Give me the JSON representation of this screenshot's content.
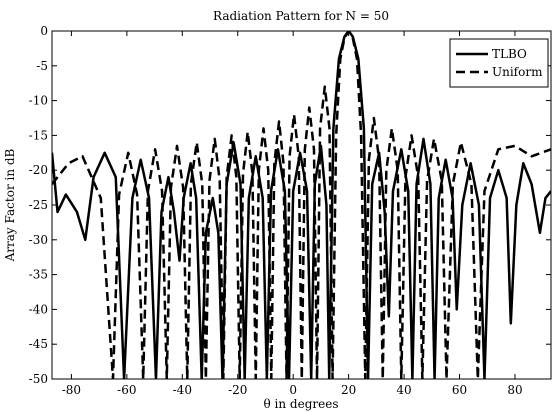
{
  "chart_data": {
    "type": "line",
    "title": "Radiation Pattern for N = 50",
    "x_label": "θ in degrees",
    "y_label": "Array Factor in dB",
    "xlim": [
      -87,
      93
    ],
    "xticks": [
      -80,
      -60,
      -40,
      -20,
      0,
      20,
      40,
      60,
      80
    ],
    "ylim": [
      -50,
      0
    ],
    "yticks": [
      -50,
      -45,
      -40,
      -35,
      -30,
      -25,
      -20,
      -15,
      -10,
      -5,
      0
    ],
    "legend": "upper right",
    "series": [
      {
        "name": "TLBO",
        "color": "#000000",
        "linestyle": "solid",
        "x": [
          -87,
          -85,
          -82,
          -78,
          -75,
          -72,
          -68,
          -64,
          -61,
          -58,
          -55,
          -52,
          -49.5,
          -47.5,
          -45,
          -43,
          -41,
          -39.5,
          -37,
          -35,
          -33,
          -31.5,
          -29,
          -27,
          -25.5,
          -24,
          -21.5,
          -19,
          -17.5,
          -16,
          -13.5,
          -11,
          -9.5,
          -8,
          -5.5,
          -3,
          -1.5,
          0,
          2.5,
          5,
          6.5,
          7.8,
          10,
          12,
          13,
          14.5,
          16.5,
          18.5,
          20,
          21.5,
          23.5,
          25.5,
          27,
          28.5,
          31,
          33,
          34.5,
          36,
          39,
          41.5,
          43,
          44.5,
          47,
          49.5,
          51,
          52.5,
          55,
          57.5,
          59,
          61,
          64,
          67,
          69,
          71,
          74,
          77,
          78.5,
          80.5,
          83,
          86,
          89,
          91,
          93
        ],
        "values": [
          -17.5,
          -26,
          -23.5,
          -26,
          -30,
          -21,
          -17.5,
          -21,
          -50,
          -24,
          -18.5,
          -24,
          -50,
          -26,
          -21,
          -26,
          -33,
          -24,
          -19,
          -24,
          -50,
          -29,
          -24,
          -29,
          -50,
          -22,
          -16,
          -22,
          -50,
          -24,
          -18,
          -24,
          -50,
          -23,
          -17,
          -23,
          -50,
          -23,
          -17.5,
          -23,
          -50,
          -22,
          -16.5,
          -25,
          -50,
          -14,
          -4,
          -0.8,
          0,
          -0.8,
          -4,
          -14,
          -50,
          -22,
          -17.5,
          -26,
          -41,
          -23,
          -17,
          -23,
          -50,
          -22,
          -15.5,
          -22,
          -50,
          -24,
          -18.5,
          -24,
          -40,
          -25,
          -19,
          -25,
          -50,
          -24,
          -20,
          -24,
          -42,
          -25,
          -19,
          -22,
          -29,
          -24,
          -23
        ]
      },
      {
        "name": "Uniform",
        "color": "#000000",
        "linestyle": "dashed",
        "x": [
          -87,
          -81,
          -76,
          -69.4,
          -65,
          -62.8,
          -59.5,
          -56.3,
          -54.1,
          -52.4,
          -49.8,
          -47.3,
          -45.6,
          -44.1,
          -41.9,
          -39.7,
          -38.2,
          -36.9,
          -34.8,
          -32.8,
          -31.5,
          -30.2,
          -28.3,
          -26.5,
          -25.2,
          -24,
          -22.2,
          -20.5,
          -19.3,
          -18.1,
          -16.4,
          -14.7,
          -13.5,
          -12.4,
          -10.7,
          -9,
          -7.9,
          -6.8,
          -5.1,
          -3.5,
          -2.4,
          -1.3,
          0.3,
          2,
          3.1,
          4.2,
          5.8,
          7.5,
          8.6,
          9.7,
          11.4,
          13.1,
          14.2,
          15.5,
          17,
          18.5,
          20,
          21.5,
          23,
          24.5,
          26,
          27.3,
          29.1,
          31,
          32.3,
          33.6,
          35.6,
          37.7,
          39,
          40.5,
          42.7,
          45.1,
          46.6,
          48.3,
          50.8,
          53.6,
          55.3,
          57.6,
          60.5,
          64.3,
          66.6,
          69,
          74,
          80,
          86,
          93
        ],
        "values": [
          -22,
          -19,
          -18,
          -24,
          -50,
          -23.5,
          -17.5,
          -23.5,
          -50,
          -23,
          -17,
          -23,
          -50,
          -22.5,
          -16.5,
          -22.5,
          -50,
          -22,
          -16,
          -22,
          -50,
          -21.5,
          -15.5,
          -21.5,
          -50,
          -21,
          -15,
          -21,
          -50,
          -20.5,
          -14.5,
          -20.5,
          -50,
          -20,
          -14,
          -20,
          -50,
          -19,
          -13,
          -19,
          -50,
          -18,
          -12,
          -18,
          -50,
          -17,
          -11,
          -17,
          -50,
          -14,
          -8,
          -14,
          -50,
          -15,
          -4,
          -1,
          0,
          -1,
          -4,
          -15,
          -50,
          -18.5,
          -12.5,
          -18.5,
          -50,
          -20,
          -14,
          -20,
          -50,
          -21,
          -15,
          -21,
          -50,
          -21.5,
          -15.5,
          -21.5,
          -50,
          -22,
          -16,
          -22,
          -50,
          -23,
          -17,
          -16.5,
          -18,
          -17
        ]
      }
    ]
  }
}
